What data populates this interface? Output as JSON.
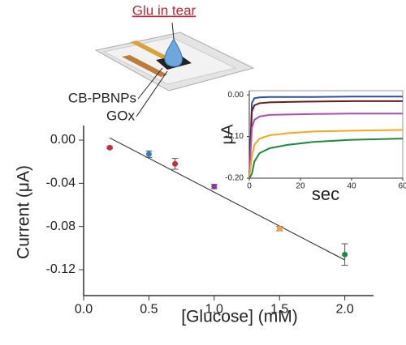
{
  "chart_data": [
    {
      "type": "scatter",
      "annotations": [
        "Glu in tear",
        "CB-PBNPs",
        "GOx"
      ],
      "x_label": "[Glucose] (mM)",
      "y_label": "Current (μA)",
      "x": [
        0.2,
        0.5,
        0.7,
        1.0,
        1.5,
        2.0
      ],
      "values": [
        -0.007,
        -0.013,
        -0.022,
        -0.043,
        -0.082,
        -0.106
      ],
      "errors": [
        0.001,
        0.003,
        0.005,
        0.002,
        0.002,
        0.01
      ],
      "colors": [
        "#c62a3c",
        "#2f7fc1",
        "#c62a3c",
        "#8a3a9a",
        "#f2a23e",
        "#1f8a3f"
      ],
      "fit": {
        "x": [
          0.2,
          2.0
        ],
        "values": [
          0.002,
          -0.111
        ],
        "color": "#222"
      },
      "xlim": [
        0,
        2.22
      ],
      "ylim": [
        -0.144,
        0.0135
      ],
      "xticks": [
        {
          "value": 0,
          "label": "0.0"
        },
        0.5,
        {
          "value": 1,
          "label": "1.0"
        },
        1.5,
        {
          "value": 2,
          "label": "2.0"
        }
      ],
      "yticks": [
        {
          "value": 0,
          "label": "0.00"
        },
        -0.04,
        -0.08,
        -0.12
      ]
    },
    {
      "type": "line",
      "x_label": "sec",
      "y_label": "μA",
      "x": [
        0,
        1,
        2,
        4,
        8,
        15,
        25,
        40,
        60
      ],
      "series": [
        {
          "color": "#2a4fb0",
          "values": [
            -0.2,
            -0.02,
            -0.008,
            -0.006,
            -0.005,
            -0.005,
            -0.005,
            -0.004,
            -0.004
          ]
        },
        {
          "color": "#6b1a1a",
          "values": [
            -0.2,
            -0.04,
            -0.025,
            -0.02,
            -0.018,
            -0.017,
            -0.016,
            -0.015,
            -0.015
          ]
        },
        {
          "color": "#b04cb0",
          "values": [
            -0.2,
            -0.08,
            -0.06,
            -0.052,
            -0.048,
            -0.047,
            -0.046,
            -0.045,
            -0.045
          ]
        },
        {
          "color": "#f5a623",
          "values": [
            -0.2,
            -0.15,
            -0.12,
            -0.105,
            -0.097,
            -0.092,
            -0.088,
            -0.086,
            -0.084
          ]
        },
        {
          "color": "#1e8a3c",
          "values": [
            -0.2,
            -0.19,
            -0.16,
            -0.14,
            -0.128,
            -0.12,
            -0.113,
            -0.108,
            -0.105
          ]
        }
      ],
      "xlim": [
        0,
        60
      ],
      "ylim": [
        -0.2,
        0.01
      ],
      "xticks": [
        0,
        20,
        40,
        60
      ],
      "yticks": [
        {
          "value": 0,
          "label": "0.00"
        },
        {
          "value": -0.1,
          "label": "-0.10"
        },
        {
          "value": -0.2,
          "label": "-0.20"
        }
      ]
    }
  ]
}
